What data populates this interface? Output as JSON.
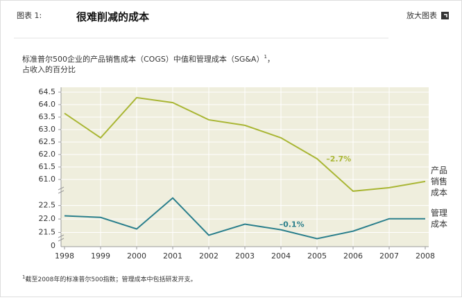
{
  "header": {
    "label": "图表 1:",
    "title": "很难削减的成本",
    "action": "放大图表"
  },
  "chart_data": {
    "type": "line",
    "subtitle": [
      "标准普尔500企业的产品销售成本（COGS）中值和管理成本（SG&A）",
      "1",
      "，",
      "占收入的百分比"
    ],
    "x": [
      1998,
      1999,
      2000,
      2001,
      2002,
      2003,
      2004,
      2005,
      2006,
      2007,
      2008
    ],
    "xlim": [
      1998,
      2008
    ],
    "panels": [
      {
        "ylim": [
          60.5,
          64.5
        ],
        "yticks": [
          {
            "value": 64.5,
            "label": "64.5"
          },
          {
            "value": 64.0,
            "label": "64.0"
          },
          {
            "value": 63.5,
            "label": "63.5"
          },
          {
            "value": 63.0,
            "label": "63.0"
          },
          {
            "value": 62.5,
            "label": "62.5"
          },
          {
            "value": 62.0,
            "label": "62.0"
          },
          {
            "value": 61.5,
            "label": "61.5"
          },
          {
            "value": 61.0,
            "label": "61.0"
          }
        ],
        "series": [
          {
            "name": "产品销售成本",
            "color": "#a9b634",
            "values": [
              63.65,
              62.67,
              64.28,
              64.08,
              63.39,
              63.17,
              62.67,
              61.83,
              60.53,
              60.67,
              60.92
            ]
          }
        ],
        "annotation": {
          "text": "–2.7%",
          "x": 2005.6,
          "y": 61.8
        }
      },
      {
        "ylim": [
          21.0,
          22.8
        ],
        "yticks": [
          {
            "value": 22.5,
            "label": "22.5"
          },
          {
            "value": 22.0,
            "label": "22.0"
          },
          {
            "value": 21.5,
            "label": "21.5"
          }
        ],
        "origin_label": "0",
        "series": [
          {
            "name": "管理成本",
            "color": "#2a7f8c",
            "values": [
              22.12,
              22.06,
              21.63,
              22.78,
              21.4,
              21.81,
              21.6,
              21.27,
              21.55,
              22.01,
              22.01
            ]
          }
        ],
        "annotation": {
          "text": "–0.1%",
          "x": 2004.3,
          "y": 21.78
        }
      }
    ],
    "footnote": [
      "1",
      "截至2008年的标准普尔500指数；管理成本中包括研发开支。"
    ]
  }
}
